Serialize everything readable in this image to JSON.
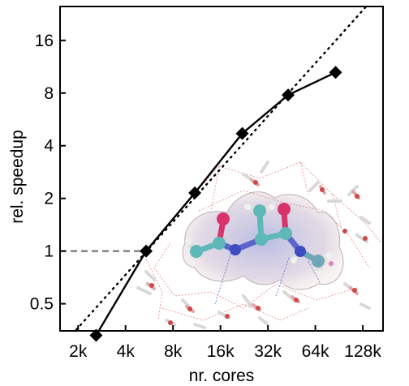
{
  "chart_data": {
    "type": "line",
    "xlabel": "nr. cores",
    "ylabel": "rel. speedup",
    "x_scale": "log2",
    "y_scale": "log2",
    "xlim": [
      1536,
      172000
    ],
    "ylim": [
      0.35,
      25
    ],
    "x_ticks": [
      {
        "value": 2000,
        "label": "2k"
      },
      {
        "value": 4000,
        "label": "4k"
      },
      {
        "value": 8000,
        "label": "8k"
      },
      {
        "value": 16000,
        "label": "16k"
      },
      {
        "value": 32000,
        "label": "32k"
      },
      {
        "value": 64000,
        "label": "64k"
      },
      {
        "value": 128000,
        "label": "128k"
      }
    ],
    "y_ticks": [
      {
        "value": 0.5,
        "label": "0.5"
      },
      {
        "value": 1,
        "label": "1"
      },
      {
        "value": 2,
        "label": "2"
      },
      {
        "value": 4,
        "label": "4"
      },
      {
        "value": 8,
        "label": "8"
      },
      {
        "value": 16,
        "label": "16"
      }
    ],
    "series": [
      {
        "style": "solid-diamond",
        "color": "#000000",
        "x": [
          2600,
          5400,
          11000,
          22000,
          43000,
          86000
        ],
        "y": [
          0.33,
          1.0,
          2.15,
          4.7,
          7.8,
          10.5
        ]
      },
      {
        "style": "dotted-ideal",
        "color": "#000000",
        "x": [
          1536,
          172000
        ],
        "y": [
          0.28,
          32
        ]
      }
    ],
    "reference_line": {
      "style": "dashed",
      "color": "#777777",
      "y": 1,
      "x_from": 1536,
      "x_to": 5400
    },
    "grid": false,
    "inset": "molecular-structure"
  }
}
